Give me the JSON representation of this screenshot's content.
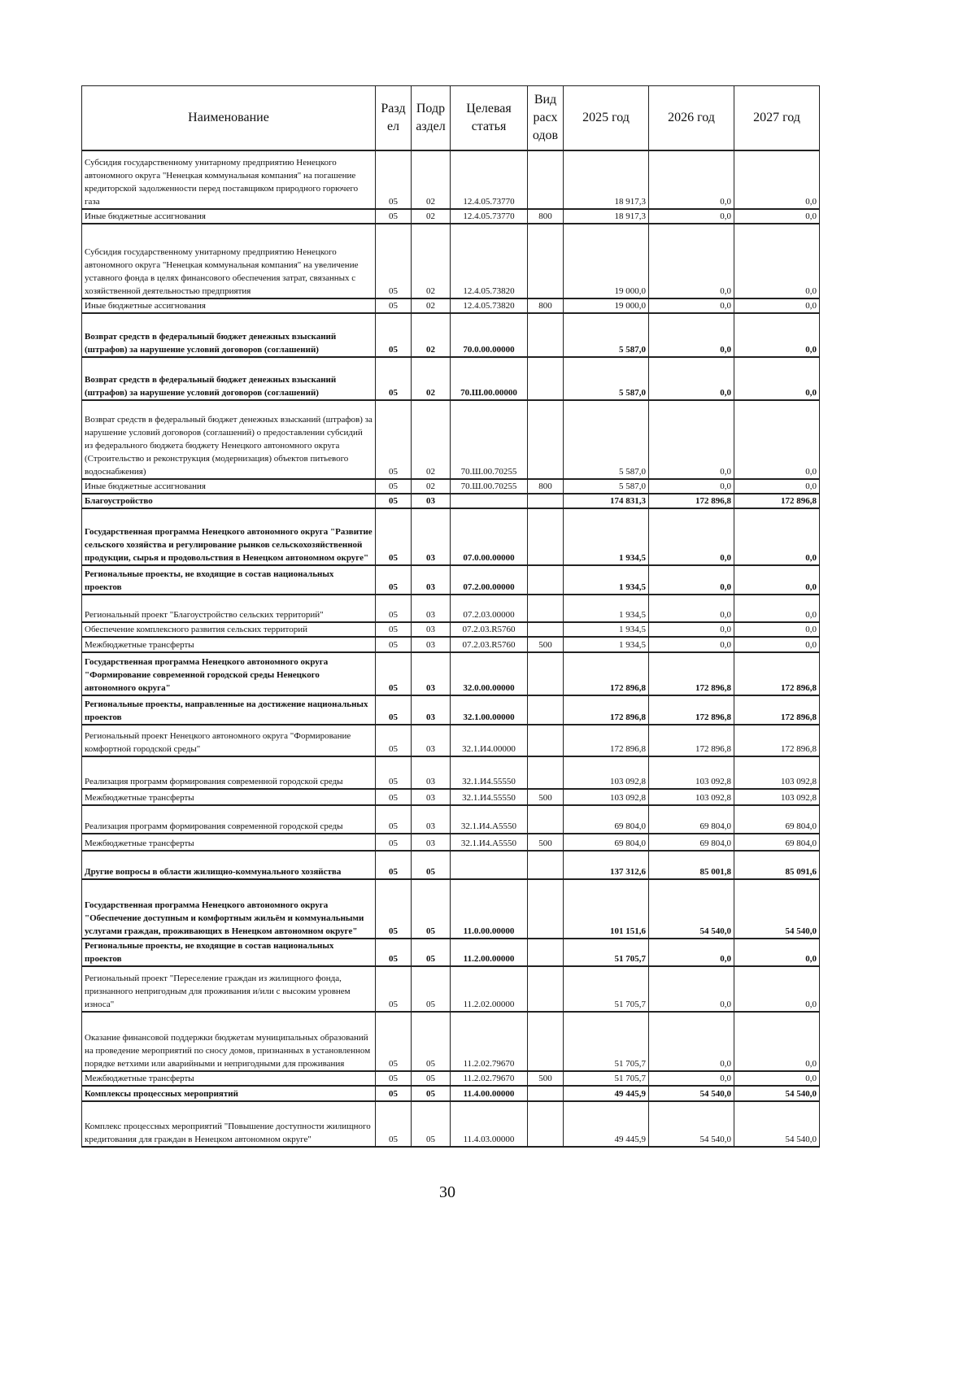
{
  "table": {
    "headers": {
      "name": "Наименование",
      "razdel": "Раздел",
      "podrazdel": "Подраздел",
      "target": "Целевая статья",
      "vid": "Вид расходов",
      "y2025": "2025 год",
      "y2026": "2026 год",
      "y2027": "2027 год"
    },
    "rows": [
      {
        "name": "Субсидия государственному унитарному предприятию Ненецкого автономного округа \"Ненецкая коммунальная компания\" на погашение кредиторской задолженности перед поставщиком природного горючего газа",
        "rz": "05",
        "pr": "02",
        "cs": "12.4.05.73770",
        "vr": "",
        "y2025": "18 917,3",
        "y2026": "0,0",
        "y2027": "0,0",
        "bold": false
      },
      {
        "name": "Иные бюджетные ассигнования",
        "rz": "05",
        "pr": "02",
        "cs": "12.4.05.73770",
        "vr": "800",
        "y2025": "18 917,3",
        "y2026": "0,0",
        "y2027": "0,0",
        "bold": false
      },
      {
        "name": "Субсидия государственному унитарному предприятию Ненецкого автономного округа \"Ненецкая коммунальная компания\" на увеличение уставного фонда в целях финансового обеспечения затрат, связанных с хозяйственной деятельностью предприятия",
        "rz": "05",
        "pr": "02",
        "cs": "12.4.05.73820",
        "vr": "",
        "y2025": "19 000,0",
        "y2026": "0,0",
        "y2027": "0,0",
        "bold": false
      },
      {
        "name": "Иные бюджетные ассигнования",
        "rz": "05",
        "pr": "02",
        "cs": "12.4.05.73820",
        "vr": "800",
        "y2025": "19 000,0",
        "y2026": "0,0",
        "y2027": "0,0",
        "bold": false
      },
      {
        "name": "Возврат средств в федеральный бюджет денежных взысканий (штрафов) за нарушение условий договоров (соглашений)",
        "rz": "05",
        "pr": "02",
        "cs": "70.0.00.00000",
        "vr": "",
        "y2025": "5 587,0",
        "y2026": "0,0",
        "y2027": "0,0",
        "bold": true
      },
      {
        "name": "Возврат средств в федеральный бюджет денежных взысканий (штрафов) за нарушение условий договоров (соглашений)",
        "rz": "05",
        "pr": "02",
        "cs": "70.Ш.00.00000",
        "vr": "",
        "y2025": "5 587,0",
        "y2026": "0,0",
        "y2027": "0,0",
        "bold": true
      },
      {
        "name": "Возврат средств в федеральный бюджет денежных взысканий (штрафов) за нарушение условий договоров (соглашений) о предоставлении субсидий из федерального бюджета бюджету Ненецкого автономного округа (Строительство и реконструкция (модернизация) объектов питьевого водоснабжения)",
        "rz": "05",
        "pr": "02",
        "cs": "70.Ш.00.70255",
        "vr": "",
        "y2025": "5 587,0",
        "y2026": "0,0",
        "y2027": "0,0",
        "bold": false
      },
      {
        "name": "Иные бюджетные ассигнования",
        "rz": "05",
        "pr": "02",
        "cs": "70.Ш.00.70255",
        "vr": "800",
        "y2025": "5 587,0",
        "y2026": "0,0",
        "y2027": "0,0",
        "bold": false
      },
      {
        "name": "Благоустройство",
        "rz": "05",
        "pr": "03",
        "cs": "",
        "vr": "",
        "y2025": "174 831,3",
        "y2026": "172 896,8",
        "y2027": "172 896,8",
        "bold": true
      },
      {
        "name": "Государственная программа Ненецкого автономного округа \"Развитие сельского хозяйства и регулирование рынков сельскохозяйственной продукции, сырья и продовольствия в Ненецком автономном округе\"",
        "rz": "05",
        "pr": "03",
        "cs": "07.0.00.00000",
        "vr": "",
        "y2025": "1 934,5",
        "y2026": "0,0",
        "y2027": "0,0",
        "bold": true
      },
      {
        "name": "Региональные проекты, не входящие в состав национальных проектов",
        "rz": "05",
        "pr": "03",
        "cs": "07.2.00.00000",
        "vr": "",
        "y2025": "1 934,5",
        "y2026": "0,0",
        "y2027": "0,0",
        "bold": true
      },
      {
        "name": "Региональный проект \"Благоустройство сельских территорий\"",
        "rz": "05",
        "pr": "03",
        "cs": "07.2.03.00000",
        "vr": "",
        "y2025": "1 934,5",
        "y2026": "0,0",
        "y2027": "0,0",
        "bold": false
      },
      {
        "name": "Обеспечение комплексного развития сельских территорий",
        "rz": "05",
        "pr": "03",
        "cs": "07.2.03.R5760",
        "vr": "",
        "y2025": "1 934,5",
        "y2026": "0,0",
        "y2027": "0,0",
        "bold": false
      },
      {
        "name": "Межбюджетные трансферты",
        "rz": "05",
        "pr": "03",
        "cs": "07.2.03.R5760",
        "vr": "500",
        "y2025": "1 934,5",
        "y2026": "0,0",
        "y2027": "0,0",
        "bold": false
      },
      {
        "name": "Государственная программа Ненецкого автономного округа \"Формирование современной городской среды Ненецкого автономного округа\"",
        "rz": "05",
        "pr": "03",
        "cs": "32.0.00.00000",
        "vr": "",
        "y2025": "172 896,8",
        "y2026": "172 896,8",
        "y2027": "172 896,8",
        "bold": true
      },
      {
        "name": "Региональные проекты, направленные на достижение национальных проектов",
        "rz": "05",
        "pr": "03",
        "cs": "32.1.00.00000",
        "vr": "",
        "y2025": "172 896,8",
        "y2026": "172 896,8",
        "y2027": "172 896,8",
        "bold": true
      },
      {
        "name": "Региональный проект Ненецкого автономного округа \"Формирование комфортной городской среды\"",
        "rz": "05",
        "pr": "03",
        "cs": "32.1.И4.00000",
        "vr": "",
        "y2025": "172 896,8",
        "y2026": "172 896,8",
        "y2027": "172 896,8",
        "bold": false
      },
      {
        "name": "Реализация программ формирования современной городской среды",
        "rz": "05",
        "pr": "03",
        "cs": "32.1.И4.55550",
        "vr": "",
        "y2025": "103 092,8",
        "y2026": "103 092,8",
        "y2027": "103 092,8",
        "bold": false
      },
      {
        "name": "Межбюджетные трансферты",
        "rz": "05",
        "pr": "03",
        "cs": "32.1.И4.55550",
        "vr": "500",
        "y2025": "103 092,8",
        "y2026": "103 092,8",
        "y2027": "103 092,8",
        "bold": false
      },
      {
        "name": "Реализация программ формирования современной городской среды",
        "rz": "05",
        "pr": "03",
        "cs": "32.1.И4.А5550",
        "vr": "",
        "y2025": "69 804,0",
        "y2026": "69 804,0",
        "y2027": "69 804,0",
        "bold": false
      },
      {
        "name": "Межбюджетные трансферты",
        "rz": "05",
        "pr": "03",
        "cs": "32.1.И4.А5550",
        "vr": "500",
        "y2025": "69 804,0",
        "y2026": "69 804,0",
        "y2027": "69 804,0",
        "bold": false
      },
      {
        "name": "Другие вопросы в области жилищно-коммунального хозяйства",
        "rz": "05",
        "pr": "05",
        "cs": "",
        "vr": "",
        "y2025": "137 312,6",
        "y2026": "85 001,8",
        "y2027": "85 091,6",
        "bold": true
      },
      {
        "name": "Государственная программа Ненецкого автономного округа \"Обеспечение доступным и комфортным жильём и коммунальными услугами граждан, проживающих в Ненецком автономном округе\"",
        "rz": "05",
        "pr": "05",
        "cs": "11.0.00.00000",
        "vr": "",
        "y2025": "101 151,6",
        "y2026": "54 540,0",
        "y2027": "54 540,0",
        "bold": true
      },
      {
        "name": "Региональные проекты, не входящие в состав национальных проектов",
        "rz": "05",
        "pr": "05",
        "cs": "11.2.00.00000",
        "vr": "",
        "y2025": "51 705,7",
        "y2026": "0,0",
        "y2027": "0,0",
        "bold": true
      },
      {
        "name": "Региональный проект \"Переселение граждан из жилищного фонда, признанного непригодным для проживания и/или с высоким уровнем износа\"",
        "rz": "05",
        "pr": "05",
        "cs": "11.2.02.00000",
        "vr": "",
        "y2025": "51 705,7",
        "y2026": "0,0",
        "y2027": "0,0",
        "bold": false
      },
      {
        "name": "Оказание финансовой поддержки бюджетам муниципальных образований на проведение мероприятий по сносу домов, признанных в установленном порядке ветхими или аварийными и непригодными для проживания",
        "rz": "05",
        "pr": "05",
        "cs": "11.2.02.79670",
        "vr": "",
        "y2025": "51 705,7",
        "y2026": "0,0",
        "y2027": "0,0",
        "bold": false
      },
      {
        "name": "Межбюджетные трансферты",
        "rz": "05",
        "pr": "05",
        "cs": "11.2.02.79670",
        "vr": "500",
        "y2025": "51 705,7",
        "y2026": "0,0",
        "y2027": "0,0",
        "bold": false
      },
      {
        "name": "Комплексы процессных мероприятий",
        "rz": "05",
        "pr": "05",
        "cs": "11.4.00.00000",
        "vr": "",
        "y2025": "49 445,9",
        "y2026": "54 540,0",
        "y2027": "54 540,0",
        "bold": true
      },
      {
        "name": "Комплекс процессных мероприятий \"Повышение доступности жилищного кредитования для граждан в Ненецком автономном округе\"",
        "rz": "05",
        "pr": "05",
        "cs": "11.4.03.00000",
        "vr": "",
        "y2025": "49 445,9",
        "y2026": "54 540,0",
        "y2027": "54 540,0",
        "bold": false
      }
    ]
  },
  "page_number": "30"
}
